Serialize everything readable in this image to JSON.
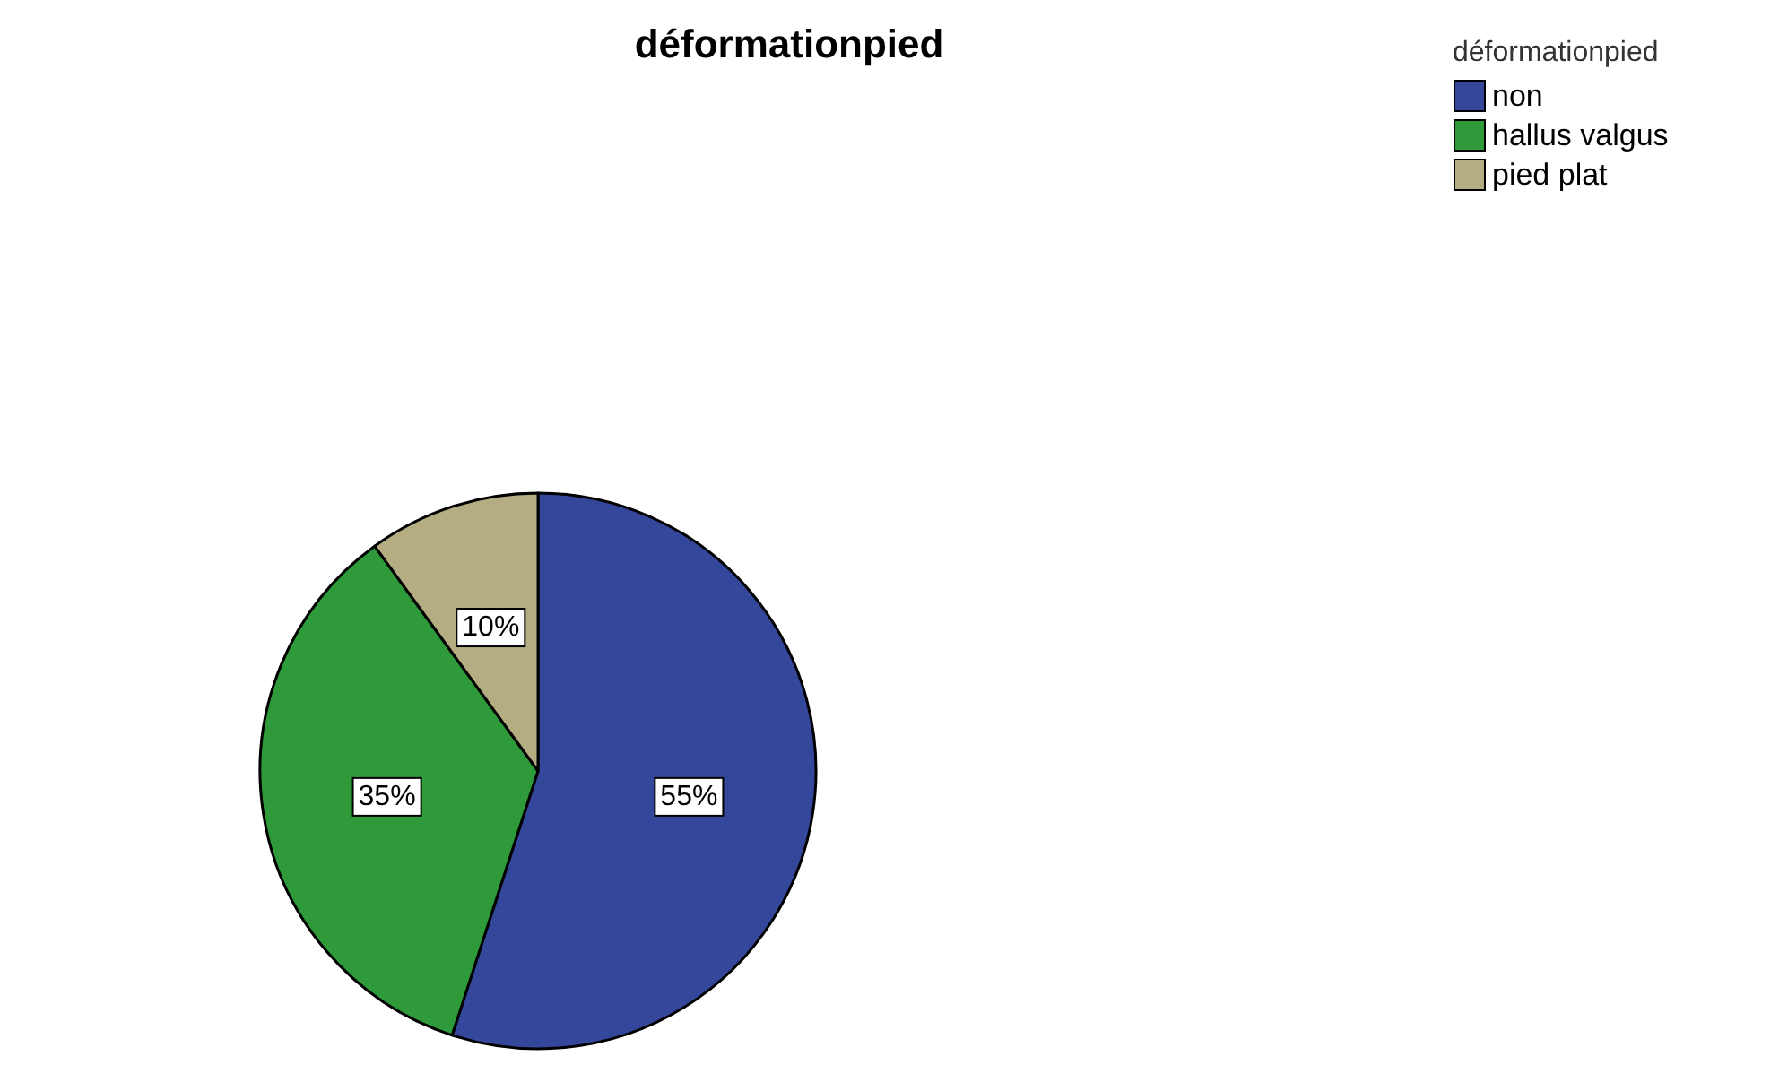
{
  "chart_data": {
    "type": "pie",
    "title": "déformationpied",
    "legend_title": "déformationpied",
    "legend": "top right",
    "categories": [
      "non",
      "hallus valgus",
      "pied plat"
    ],
    "values": [
      55,
      35,
      10
    ],
    "colors": [
      "#35479a",
      "#2e9a3a",
      "#b5ad82"
    ],
    "value_labels": [
      "55%",
      "35%",
      "10%"
    ]
  }
}
